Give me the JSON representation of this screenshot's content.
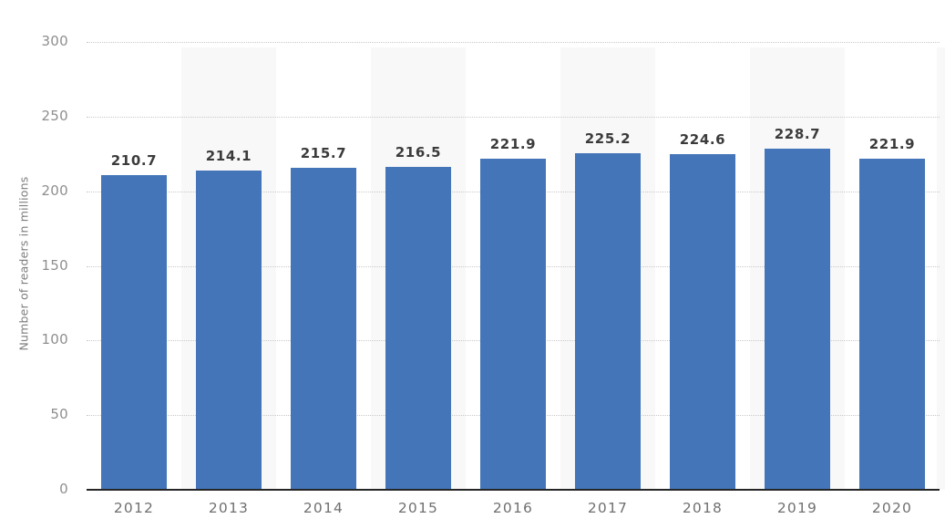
{
  "chart_data": {
    "type": "bar",
    "categories": [
      "2012",
      "2013",
      "2014",
      "2015",
      "2016",
      "2017",
      "2018",
      "2019",
      "2020"
    ],
    "values": [
      210.7,
      214.1,
      215.7,
      216.5,
      221.9,
      225.2,
      224.6,
      228.7,
      221.9
    ],
    "value_labels": [
      "210.7",
      "214.1",
      "215.7",
      "216.5",
      "221.9",
      "225.2",
      "224.6",
      "228.7",
      "221.9"
    ],
    "xlabel": "",
    "ylabel": "Number of readers in millions",
    "ylim": [
      0,
      300
    ],
    "yticks": [
      0,
      50,
      100,
      150,
      200,
      250,
      300
    ],
    "grid": "horizontal dotted lines at every 50, solid dark baseline at 0",
    "legend": "none",
    "banded_columns": [
      1,
      3,
      5,
      7
    ],
    "colors": {
      "bar": "#4375b8",
      "column_band": "#f8f8f8",
      "gridline": "#c9c9c9",
      "baseline": "#262626",
      "tick_label": "#8e8e8e",
      "value_label": "#3b3b3b",
      "x_label": "#707070",
      "y_axis_title": "#7d7d7d",
      "background": "#ffffff"
    }
  }
}
